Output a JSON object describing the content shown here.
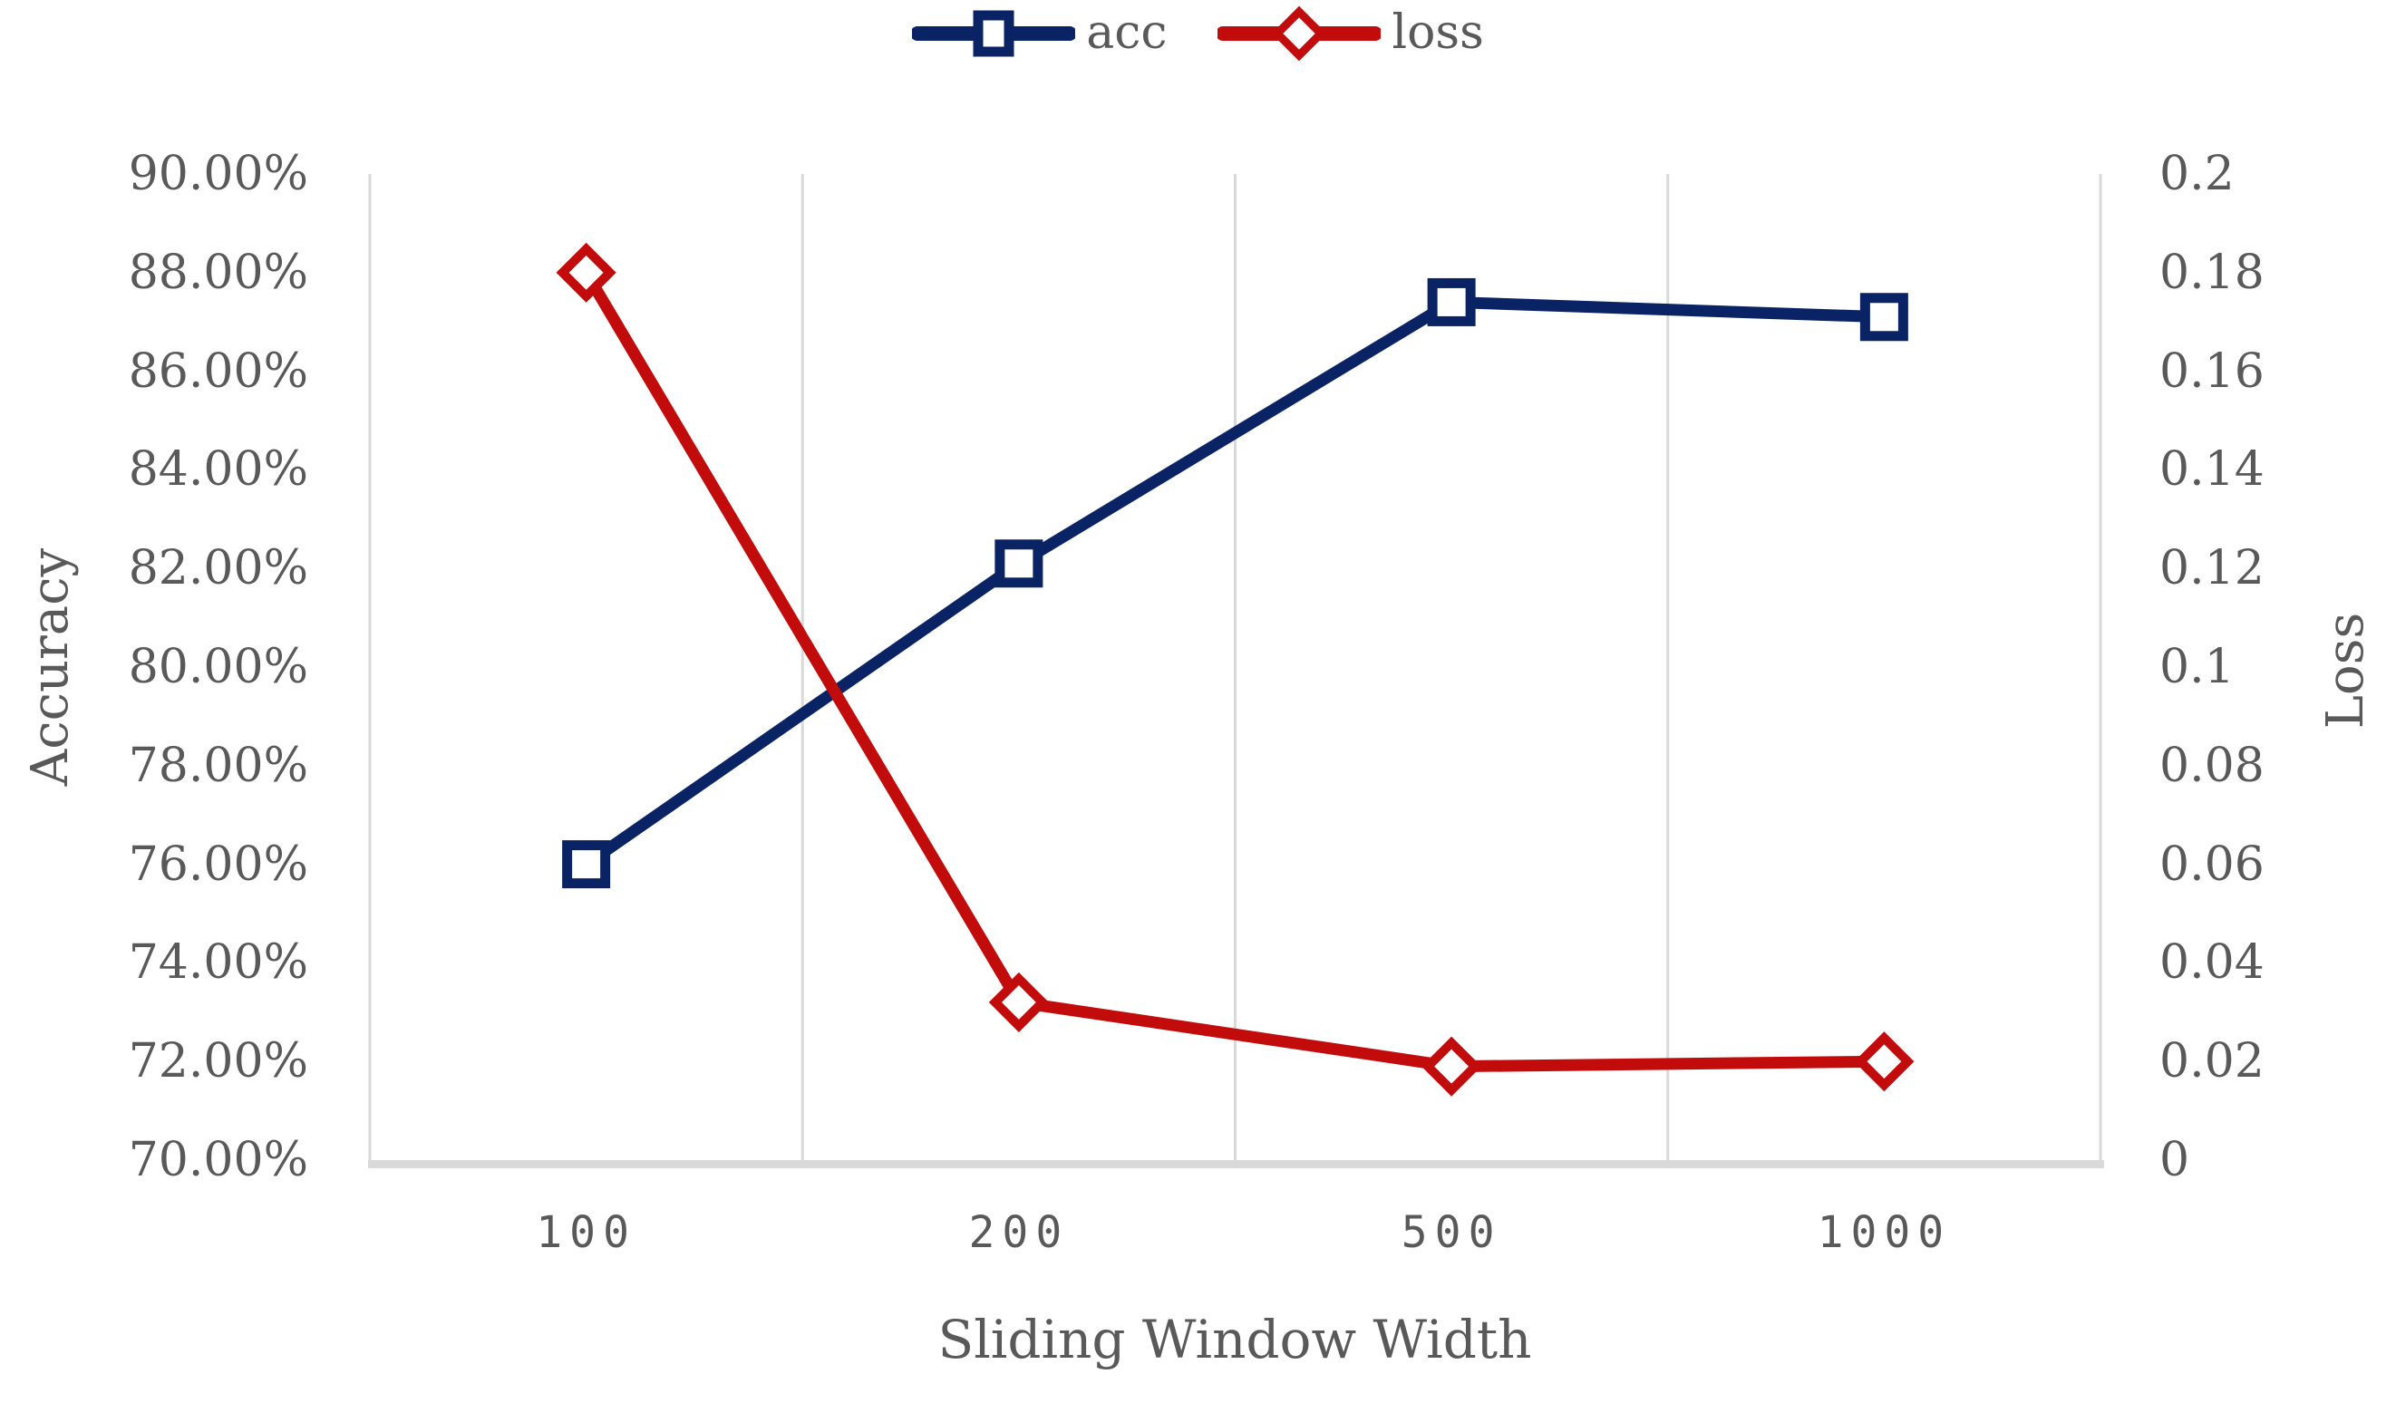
{
  "chart_data": {
    "type": "line",
    "title": "",
    "xlabel": "Sliding Window Width",
    "ylabel_left": "Accuracy",
    "ylabel_right": "Loss",
    "categories": [
      "100",
      "200",
      "500",
      "1000"
    ],
    "series": [
      {
        "name": "acc",
        "axis": "left",
        "color": "#0A2364",
        "marker": "square",
        "unit": "%",
        "values": [
          76.0,
          82.1,
          87.4,
          87.1
        ]
      },
      {
        "name": "loss",
        "axis": "right",
        "color": "#C20B0B",
        "marker": "diamond",
        "unit": "",
        "values": [
          0.18,
          0.032,
          0.019,
          0.02
        ]
      }
    ],
    "axis_left": {
      "min": 70,
      "max": 90,
      "ticks": [
        "90.00%",
        "88.00%",
        "86.00%",
        "84.00%",
        "82.00%",
        "80.00%",
        "78.00%",
        "76.00%",
        "74.00%",
        "72.00%",
        "70.00%"
      ]
    },
    "axis_right": {
      "min": 0,
      "max": 0.2,
      "ticks": [
        "0.2",
        "0.18",
        "0.16",
        "0.14",
        "0.12",
        "0.1",
        "0.08",
        "0.06",
        "0.04",
        "0.02",
        "0"
      ]
    },
    "grid": {
      "vertical": true,
      "horizontal": false,
      "color": "#D9D9D9"
    },
    "axis_line_color": "#D9D9D9",
    "text_color": "#595959",
    "background": "#FFFFFF",
    "legend_position": "top"
  }
}
